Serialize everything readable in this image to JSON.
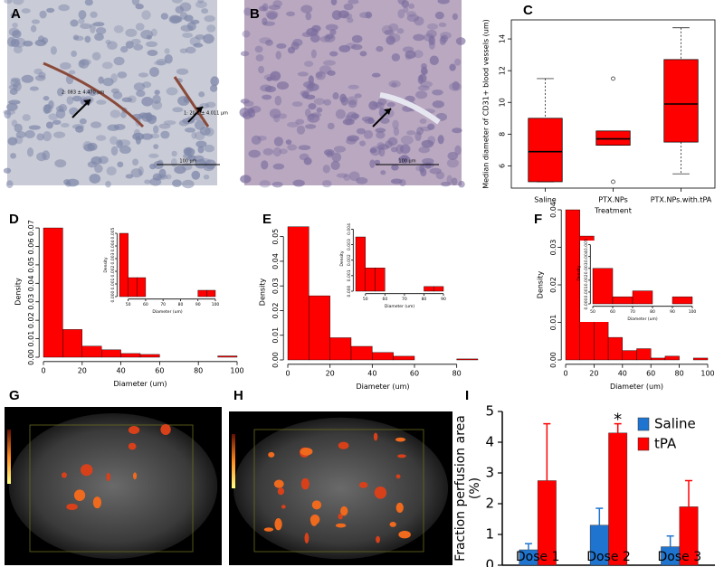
{
  "images": [
    {
      "panel": "A",
      "annotations": [
        "2: 083 ± 4.470 µm",
        "1: 20.1 ± 4.011 µm"
      ],
      "scale_label": "100 µm"
    },
    {
      "panel": "B",
      "scale_label": "100 µm"
    },
    {
      "panel": "G"
    },
    {
      "panel": "H"
    }
  ],
  "chart_data": [
    {
      "type": "boxplot",
      "panel": "C",
      "xlabel": "Treatment",
      "ylabel": "Median diameter of CD31+ blood vessels (um)",
      "categories": [
        "Saline",
        "PTX.NPs",
        "PTX.NPs.with.tPA"
      ],
      "color": "#ff0000",
      "boxes": [
        {
          "min": 5.0,
          "q1": 5.0,
          "median": 6.9,
          "q3": 9.0,
          "max": 11.5,
          "outliers": []
        },
        {
          "min": 7.3,
          "q1": 7.3,
          "median": 7.7,
          "q3": 8.2,
          "max": 8.2,
          "outliers": [
            11.5,
            5.0
          ]
        },
        {
          "min": 5.5,
          "q1": 7.5,
          "median": 9.9,
          "q3": 12.7,
          "max": 14.7,
          "outliers": []
        }
      ],
      "ylim": [
        4.6,
        15.2
      ],
      "yticks": [
        6,
        8,
        10,
        12,
        14
      ]
    },
    {
      "type": "histogram",
      "panel": "D",
      "xlabel": "Diameter (um)",
      "ylabel": "Density",
      "color": "#ff0000",
      "bins": [
        0,
        10,
        20,
        30,
        40,
        50,
        60,
        70,
        80,
        90,
        100
      ],
      "values": [
        0.07,
        0.015,
        0.006,
        0.004,
        0.002,
        0.0015,
        0,
        0,
        0,
        0.0007
      ],
      "xlim": [
        0,
        100
      ],
      "xticks": [
        0,
        20,
        40,
        60,
        80,
        100
      ],
      "ylim": [
        0,
        0.071
      ],
      "yticks": [
        {
          "value": 0,
          "label": "0.00"
        },
        {
          "value": 0.01,
          "label": "0.01"
        },
        {
          "value": 0.02,
          "label": "0.02"
        },
        {
          "value": 0.03,
          "label": "0.03"
        },
        {
          "value": 0.04,
          "label": "0.04"
        },
        {
          "value": 0.05,
          "label": "0.05"
        },
        {
          "value": 0.06,
          "label": "0.06"
        },
        {
          "value": 0.07,
          "label": "0.07"
        }
      ],
      "inset": {
        "xlabel": "Diameter (um)",
        "ylabel": "Density",
        "bins": [
          45,
          50,
          55,
          60,
          65,
          70,
          75,
          80,
          85,
          90,
          95,
          100
        ],
        "values": [
          0.005,
          0.0015,
          0.0015,
          0,
          0,
          0,
          0,
          0,
          0,
          0.0005,
          0.0005
        ],
        "xlim": [
          45,
          100
        ],
        "xticks": [
          50,
          60,
          70,
          80,
          90,
          100
        ],
        "ylim": [
          0,
          0.005
        ],
        "yticks": [
          {
            "value": 0,
            "label": "0.000"
          },
          {
            "value": 0.001,
            "label": "0.001"
          },
          {
            "value": 0.002,
            "label": "0.002"
          },
          {
            "value": 0.003,
            "label": "0.003"
          },
          {
            "value": 0.004,
            "label": "0.004"
          },
          {
            "value": 0.005,
            "label": "0.005"
          }
        ]
      }
    },
    {
      "type": "histogram",
      "panel": "E",
      "xlabel": "Diameter (um)",
      "ylabel": "Density",
      "color": "#ff0000",
      "bins": [
        0,
        10,
        20,
        30,
        40,
        50,
        60,
        70,
        80,
        90
      ],
      "values": [
        0.054,
        0.026,
        0.009,
        0.0055,
        0.003,
        0.0015,
        0,
        0,
        0.0004
      ],
      "xlim": [
        0,
        90
      ],
      "xticks": [
        0,
        20,
        40,
        60,
        80
      ],
      "ylim": [
        0,
        0.055
      ],
      "yticks": [
        {
          "value": 0,
          "label": "0.00"
        },
        {
          "value": 0.01,
          "label": "0.01"
        },
        {
          "value": 0.02,
          "label": "0.02"
        },
        {
          "value": 0.03,
          "label": "0.03"
        },
        {
          "value": 0.04,
          "label": "0.04"
        },
        {
          "value": 0.05,
          "label": "0.05"
        }
      ],
      "inset": {
        "xlabel": "Diameter (um)",
        "ylabel": "Density",
        "bins": [
          45,
          50,
          55,
          60,
          65,
          70,
          75,
          80,
          85,
          90
        ],
        "values": [
          0.0035,
          0.0015,
          0.0015,
          0,
          0,
          0,
          0,
          0.0003,
          0.0003
        ],
        "xlim": [
          45,
          90
        ],
        "xticks": [
          50,
          60,
          70,
          80,
          90
        ],
        "ylim": [
          0,
          0.0042
        ],
        "yticks": [
          {
            "value": 0,
            "label": "0.000"
          },
          {
            "value": 0.001,
            "label": "0.001"
          },
          {
            "value": 0.002,
            "label": "0.002"
          },
          {
            "value": 0.003,
            "label": "0.003"
          },
          {
            "value": 0.004,
            "label": "0.004"
          }
        ]
      }
    },
    {
      "type": "histogram",
      "panel": "F",
      "xlabel": "Diameter (um)",
      "ylabel": "Density",
      "color": "#ff0000",
      "bins": [
        0,
        10,
        20,
        30,
        40,
        50,
        60,
        70,
        80,
        90,
        100
      ],
      "values": [
        0.04,
        0.033,
        0.013,
        0.006,
        0.0025,
        0.003,
        0.0005,
        0.001,
        0,
        0.0005
      ],
      "xlim": [
        0,
        100
      ],
      "xticks": [
        0,
        20,
        40,
        60,
        80,
        100
      ],
      "ylim": [
        0,
        0.04
      ],
      "yticks": [
        {
          "value": 0,
          "label": "0.00"
        },
        {
          "value": 0.01,
          "label": "0.01"
        },
        {
          "value": 0.02,
          "label": "0.02"
        },
        {
          "value": 0.03,
          "label": "0.03"
        },
        {
          "value": 0.04,
          "label": "0.04"
        }
      ],
      "inset": {
        "xlabel": "Diameter (um)",
        "ylabel": "Density",
        "bins": [
          50,
          60,
          70,
          80,
          90,
          100
        ],
        "values": [
          0.003,
          0.0006,
          0.0011,
          0,
          0.0006
        ],
        "xlim": [
          50,
          100
        ],
        "xticks": [
          50,
          60,
          70,
          80,
          90,
          100
        ],
        "ylim": [
          0,
          0.0052
        ],
        "yticks": [
          {
            "value": 0,
            "label": "0.000"
          },
          {
            "value": 0.001,
            "label": "0.001"
          },
          {
            "value": 0.002,
            "label": "0.002"
          },
          {
            "value": 0.003,
            "label": "0.003"
          },
          {
            "value": 0.004,
            "label": "0.004"
          },
          {
            "value": 0.005,
            "label": "0.005"
          }
        ]
      }
    },
    {
      "type": "bar",
      "panel": "I",
      "ylabel": [
        "Fraction perfusion area",
        "(%)"
      ],
      "categories": [
        "Dose 1",
        "Dose 2",
        "Dose 3"
      ],
      "series": [
        {
          "name": "Saline",
          "color": "#1f74cf",
          "values": [
            0.5,
            1.3,
            0.6
          ],
          "errors": [
            0.2,
            0.55,
            0.35
          ]
        },
        {
          "name": "tPA",
          "color": "#ff0000",
          "values": [
            2.75,
            4.3,
            1.9
          ],
          "errors": [
            1.85,
            0.3,
            0.85
          ]
        }
      ],
      "annotations": [
        {
          "text": "*",
          "category": "Dose 2",
          "series": "tPA"
        }
      ],
      "ylim": [
        0,
        5
      ],
      "yticks": [
        0,
        1,
        2,
        3,
        4,
        5
      ],
      "legend": "upper right"
    }
  ]
}
